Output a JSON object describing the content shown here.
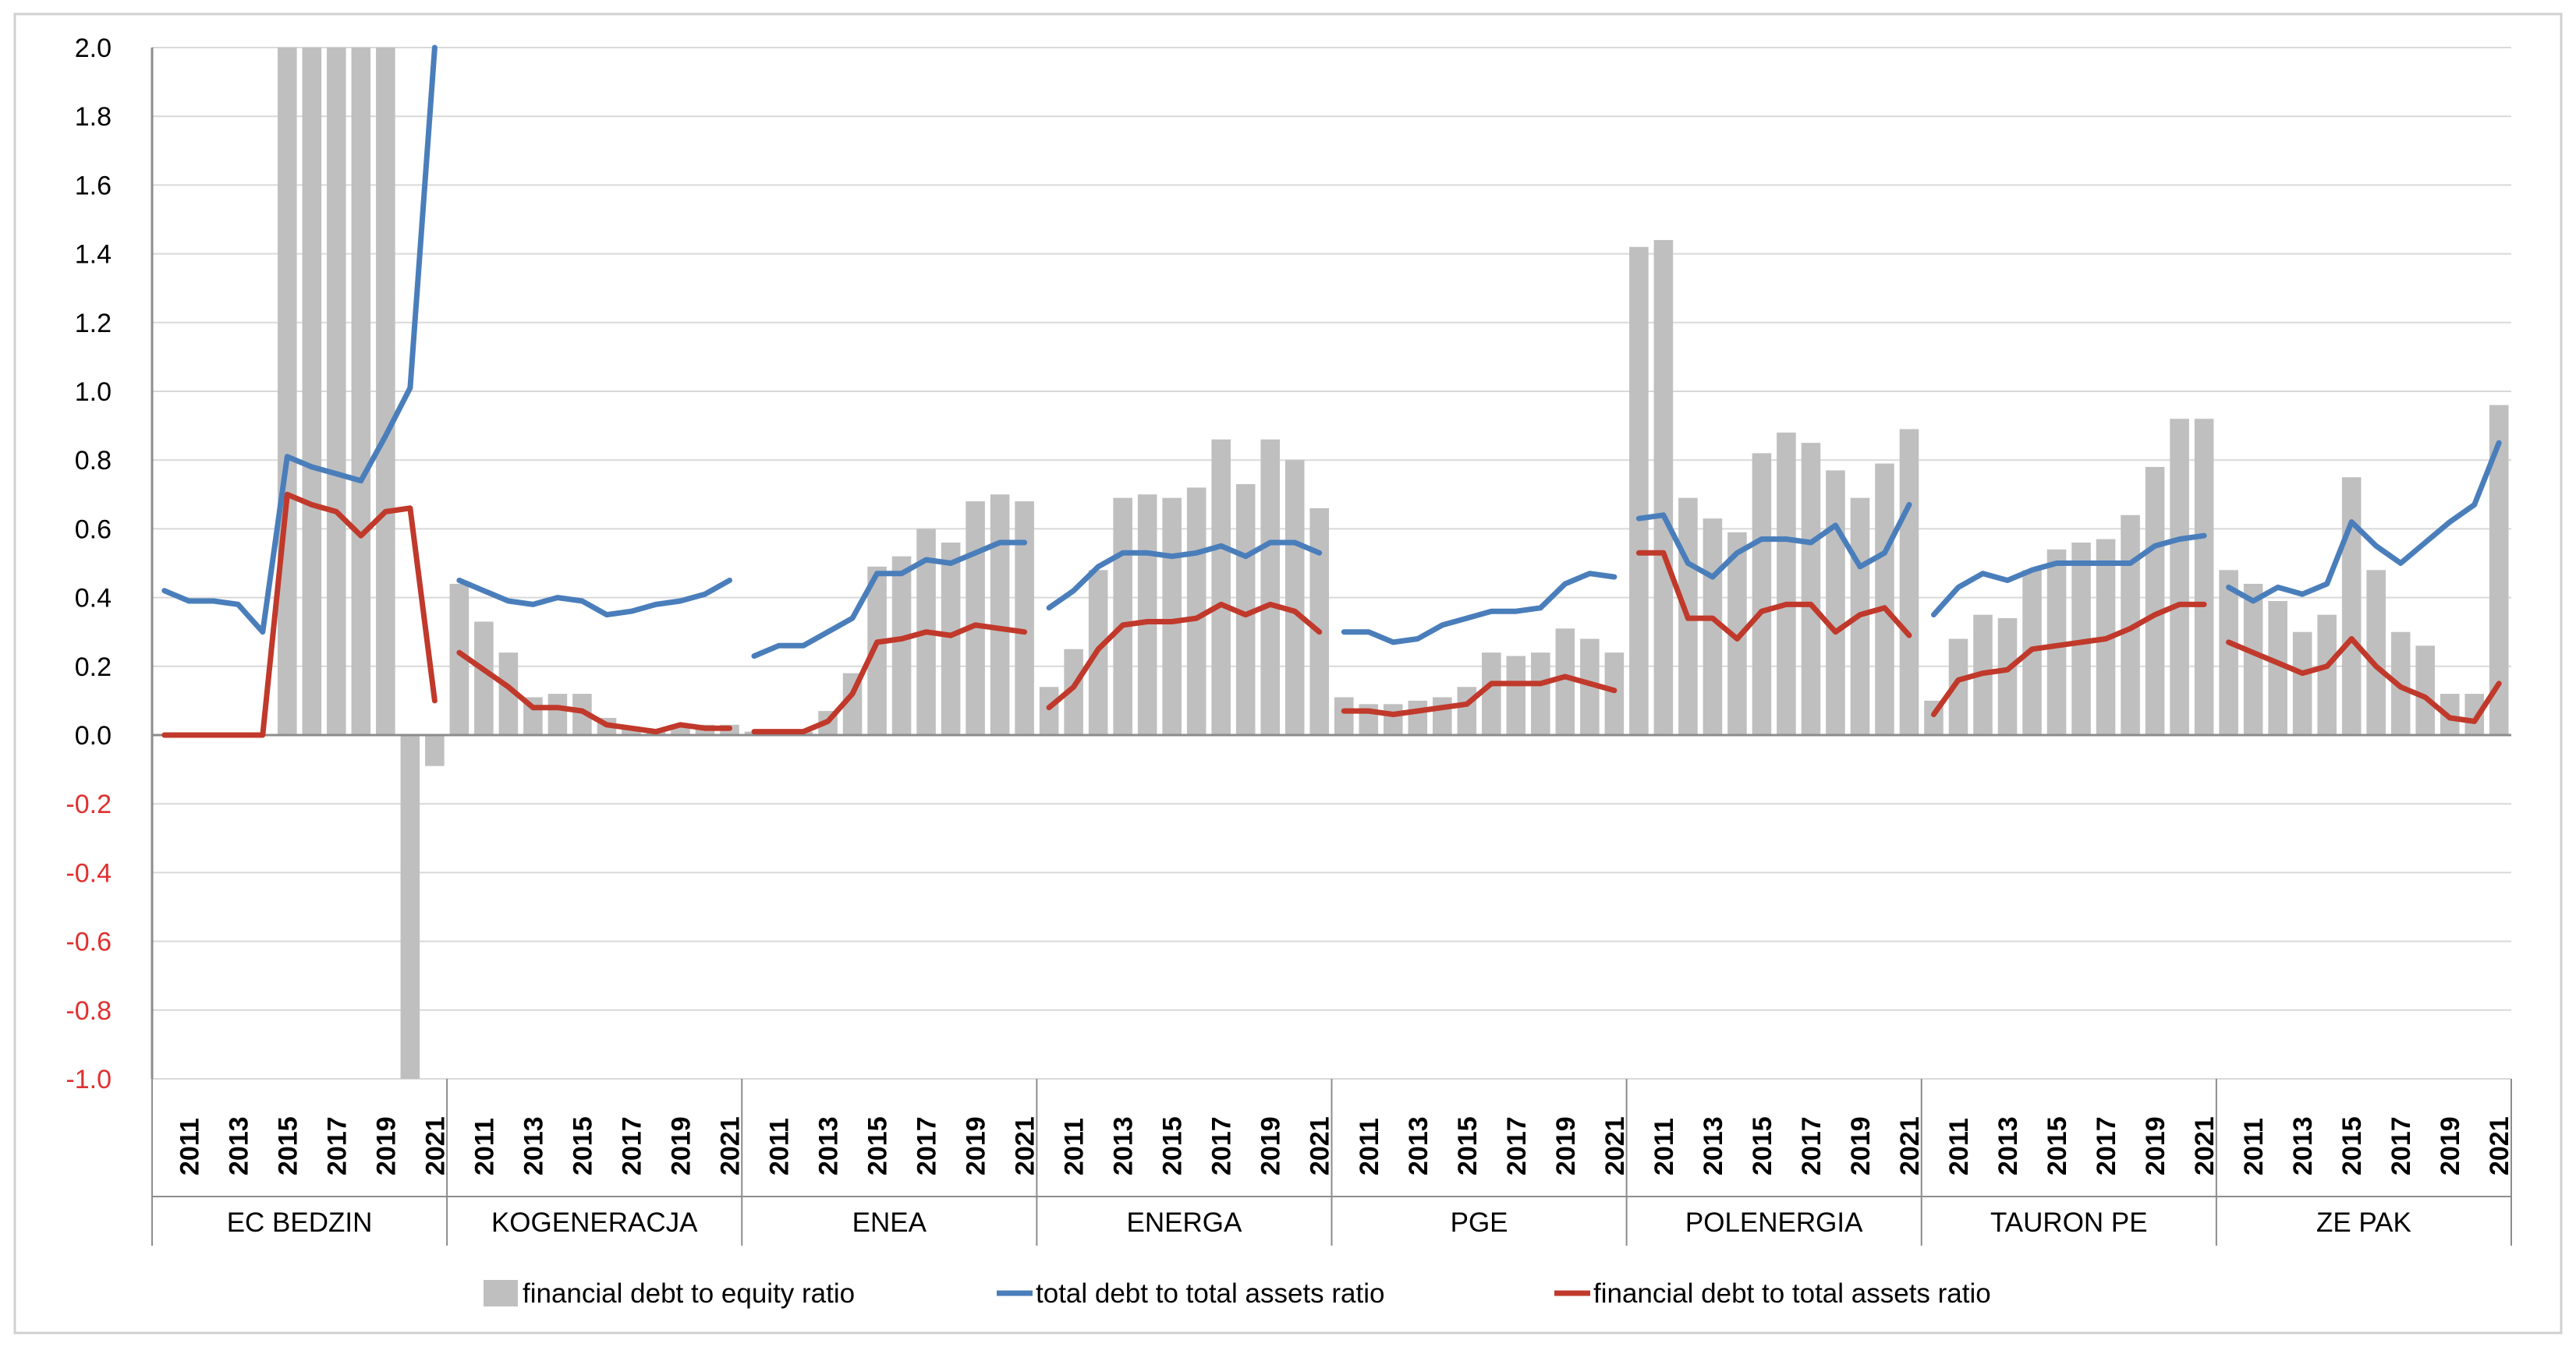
{
  "chart_data": {
    "type": "bar+line",
    "ylim": [
      -1.0,
      2.0
    ],
    "yticks": [
      "2.0",
      "1.8",
      "1.6",
      "1.4",
      "1.2",
      "1.0",
      "0.8",
      "0.6",
      "0.4",
      "0.2",
      "0.0",
      "-0.2",
      "-0.4",
      "-0.6",
      "-0.8",
      "-1.0"
    ],
    "year_tick_labels": [
      "2011",
      "2013",
      "2015",
      "2017",
      "2019",
      "2021"
    ],
    "years": [
      2010,
      2011,
      2012,
      2013,
      2014,
      2015,
      2016,
      2017,
      2018,
      2019,
      2020,
      2021
    ],
    "groups": [
      {
        "name": "EC BEDZIN",
        "bars": [
          0,
          0,
          0,
          0,
          0,
          2.0,
          2.0,
          2.0,
          2.0,
          2.0,
          -1.0,
          -0.09
        ],
        "total": [
          0.42,
          0.39,
          0.39,
          0.38,
          0.3,
          0.81,
          0.78,
          0.76,
          0.74,
          0.87,
          1.01,
          2.0
        ],
        "fin": [
          0,
          0,
          0,
          0,
          0,
          0.7,
          0.67,
          0.65,
          0.58,
          0.65,
          0.66,
          0.1
        ]
      },
      {
        "name": "KOGENERACJA",
        "bars": [
          0.44,
          0.33,
          0.24,
          0.11,
          0.12,
          0.12,
          0.05,
          0.02,
          0.01,
          0.03,
          0.03,
          0.03
        ],
        "total": [
          0.45,
          0.42,
          0.39,
          0.38,
          0.4,
          0.39,
          0.35,
          0.36,
          0.38,
          0.39,
          0.41,
          0.45
        ],
        "fin": [
          0.24,
          0.19,
          0.14,
          0.08,
          0.08,
          0.07,
          0.03,
          0.02,
          0.01,
          0.03,
          0.02,
          0.02
        ]
      },
      {
        "name": "ENEA",
        "bars": [
          0.01,
          0.01,
          0.01,
          0.07,
          0.18,
          0.49,
          0.52,
          0.6,
          0.56,
          0.68,
          0.7,
          0.68
        ],
        "total": [
          0.23,
          0.26,
          0.26,
          0.3,
          0.34,
          0.47,
          0.47,
          0.51,
          0.5,
          0.53,
          0.56,
          0.56
        ],
        "fin": [
          0.01,
          0.01,
          0.01,
          0.04,
          0.12,
          0.27,
          0.28,
          0.3,
          0.29,
          0.32,
          0.31,
          0.3
        ]
      },
      {
        "name": "ENERGA",
        "bars": [
          0.14,
          0.25,
          0.48,
          0.69,
          0.7,
          0.69,
          0.72,
          0.86,
          0.73,
          0.86,
          0.8,
          0.66
        ],
        "total": [
          0.37,
          0.42,
          0.49,
          0.53,
          0.53,
          0.52,
          0.53,
          0.55,
          0.52,
          0.56,
          0.56,
          0.53
        ],
        "fin": [
          0.08,
          0.14,
          0.25,
          0.32,
          0.33,
          0.33,
          0.34,
          0.38,
          0.35,
          0.38,
          0.36,
          0.3
        ]
      },
      {
        "name": "PGE",
        "bars": [
          0.11,
          0.09,
          0.09,
          0.1,
          0.11,
          0.14,
          0.24,
          0.23,
          0.24,
          0.31,
          0.28,
          0.24
        ],
        "total": [
          0.3,
          0.3,
          0.27,
          0.28,
          0.32,
          0.34,
          0.36,
          0.36,
          0.37,
          0.44,
          0.47,
          0.46
        ],
        "fin": [
          0.07,
          0.07,
          0.06,
          0.07,
          0.08,
          0.09,
          0.15,
          0.15,
          0.15,
          0.17,
          0.15,
          0.13
        ]
      },
      {
        "name": "POLENERGIA",
        "bars": [
          1.42,
          1.44,
          0.69,
          0.63,
          0.59,
          0.82,
          0.88,
          0.85,
          0.77,
          0.69,
          0.79,
          0.89
        ],
        "total": [
          0.63,
          0.64,
          0.5,
          0.46,
          0.53,
          0.57,
          0.57,
          0.56,
          0.61,
          0.49,
          0.53,
          0.67
        ],
        "fin": [
          0.53,
          0.53,
          0.34,
          0.34,
          0.28,
          0.36,
          0.38,
          0.38,
          0.3,
          0.35,
          0.37,
          0.29
        ]
      },
      {
        "name": "TAURON PE",
        "bars": [
          0.1,
          0.28,
          0.35,
          0.34,
          0.48,
          0.54,
          0.56,
          0.57,
          0.64,
          0.78,
          0.92,
          0.92
        ],
        "total": [
          0.35,
          0.43,
          0.47,
          0.45,
          0.48,
          0.5,
          0.5,
          0.5,
          0.5,
          0.55,
          0.57,
          0.58
        ],
        "fin": [
          0.06,
          0.16,
          0.18,
          0.19,
          0.25,
          0.26,
          0.27,
          0.28,
          0.31,
          0.35,
          0.38,
          0.38
        ]
      },
      {
        "name": "ZE PAK",
        "bars": [
          0.48,
          0.44,
          0.39,
          0.3,
          0.35,
          0.75,
          0.48,
          0.3,
          0.26,
          0.12,
          0.12,
          0.96
        ],
        "total": [
          0.43,
          0.39,
          0.43,
          0.41,
          0.44,
          0.62,
          0.55,
          0.5,
          0.56,
          0.62,
          0.67,
          0.85
        ],
        "fin": [
          0.27,
          0.24,
          0.21,
          0.18,
          0.2,
          0.28,
          0.2,
          0.14,
          0.11,
          0.05,
          0.04,
          0.15
        ]
      }
    ],
    "legend": [
      {
        "label": "financial debt to equity ratio",
        "color": "#bfbfbf",
        "kind": "bar"
      },
      {
        "label": "total debt to total assets ratio",
        "color": "#4a7ebb",
        "kind": "line"
      },
      {
        "label": "financial debt to total assets ratio",
        "color": "#c0392b",
        "kind": "line"
      }
    ],
    "negative_tick_color": "#e03030"
  }
}
